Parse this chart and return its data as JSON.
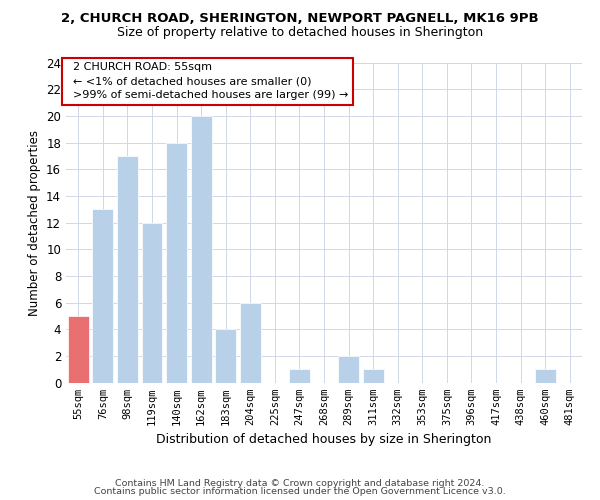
{
  "title1": "2, CHURCH ROAD, SHERINGTON, NEWPORT PAGNELL, MK16 9PB",
  "title2": "Size of property relative to detached houses in Sherington",
  "xlabel": "Distribution of detached houses by size in Sherington",
  "ylabel": "Number of detached properties",
  "categories": [
    "55sqm",
    "76sqm",
    "98sqm",
    "119sqm",
    "140sqm",
    "162sqm",
    "183sqm",
    "204sqm",
    "225sqm",
    "247sqm",
    "268sqm",
    "289sqm",
    "311sqm",
    "332sqm",
    "353sqm",
    "375sqm",
    "396sqm",
    "417sqm",
    "438sqm",
    "460sqm",
    "481sqm"
  ],
  "values": [
    5,
    13,
    17,
    12,
    18,
    20,
    4,
    6,
    0,
    1,
    0,
    2,
    1,
    0,
    0,
    0,
    0,
    0,
    0,
    1,
    0
  ],
  "highlight_index": 0,
  "bar_color": "#b8d0e8",
  "highlight_color": "#e87070",
  "ylim": [
    0,
    24
  ],
  "yticks": [
    0,
    2,
    4,
    6,
    8,
    10,
    12,
    14,
    16,
    18,
    20,
    22,
    24
  ],
  "annotation_title": "2 CHURCH ROAD: 55sqm",
  "annotation_line1": "← <1% of detached houses are smaller (0)",
  "annotation_line2": ">99% of semi-detached houses are larger (99) →",
  "footer1": "Contains HM Land Registry data © Crown copyright and database right 2024.",
  "footer2": "Contains public sector information licensed under the Open Government Licence v3.0.",
  "bg_color": "#ffffff",
  "grid_color": "#d0d8e8"
}
